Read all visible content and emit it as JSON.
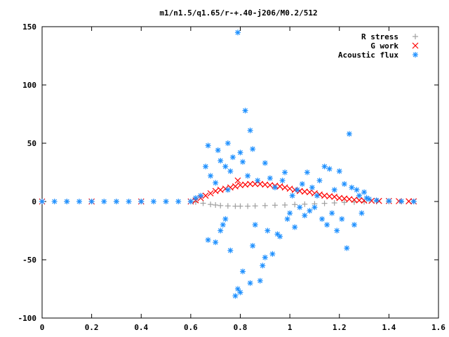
{
  "chart_data": {
    "type": "scatter",
    "title": "m1/n1.5/q1.65/r-+.40-j206/M0.2/512",
    "xlabel": "",
    "ylabel": "",
    "xlim": [
      0,
      1.6
    ],
    "ylim": [
      -100,
      150
    ],
    "xticks": [
      "0",
      "0.2",
      "0.4",
      "0.6",
      "0.8",
      "1",
      "1.2",
      "1.4",
      "1.6"
    ],
    "yticks": [
      "-100",
      "-50",
      "0",
      "50",
      "100",
      "150"
    ],
    "grid": false,
    "legend": "top-right",
    "series": [
      {
        "name": "R stress",
        "marker": "plus",
        "color": "#a0a0a0",
        "points": [
          [
            0.0,
            0
          ],
          [
            0.1,
            0
          ],
          [
            0.2,
            0
          ],
          [
            0.3,
            0
          ],
          [
            0.4,
            0
          ],
          [
            0.5,
            0
          ],
          [
            0.6,
            0
          ],
          [
            0.62,
            -0.5
          ],
          [
            0.65,
            -1.5
          ],
          [
            0.68,
            -2.5
          ],
          [
            0.7,
            -3
          ],
          [
            0.72,
            -3.5
          ],
          [
            0.75,
            -3.8
          ],
          [
            0.78,
            -4
          ],
          [
            0.8,
            -4
          ],
          [
            0.83,
            -4
          ],
          [
            0.86,
            -3.8
          ],
          [
            0.9,
            -3.5
          ],
          [
            0.94,
            -3.2
          ],
          [
            0.98,
            -3
          ],
          [
            1.02,
            -2.6
          ],
          [
            1.06,
            -2.3
          ],
          [
            1.1,
            -2
          ],
          [
            1.14,
            -1.6
          ],
          [
            1.18,
            -1.2
          ],
          [
            1.22,
            -0.8
          ],
          [
            1.26,
            -0.5
          ],
          [
            1.3,
            -0.3
          ],
          [
            1.35,
            -0.1
          ],
          [
            1.4,
            0
          ],
          [
            1.45,
            0
          ],
          [
            1.5,
            0
          ]
        ]
      },
      {
        "name": "G work",
        "marker": "cross",
        "color": "#ff0000",
        "points": [
          [
            0.0,
            0
          ],
          [
            0.2,
            0
          ],
          [
            0.4,
            0
          ],
          [
            0.6,
            0
          ],
          [
            0.62,
            1
          ],
          [
            0.64,
            3
          ],
          [
            0.66,
            5
          ],
          [
            0.68,
            7
          ],
          [
            0.7,
            9
          ],
          [
            0.72,
            10
          ],
          [
            0.74,
            11
          ],
          [
            0.76,
            12
          ],
          [
            0.78,
            13
          ],
          [
            0.79,
            18
          ],
          [
            0.8,
            14
          ],
          [
            0.82,
            14.5
          ],
          [
            0.84,
            15
          ],
          [
            0.86,
            15
          ],
          [
            0.88,
            15
          ],
          [
            0.9,
            14.5
          ],
          [
            0.92,
            14
          ],
          [
            0.94,
            13.5
          ],
          [
            0.96,
            13
          ],
          [
            0.98,
            12
          ],
          [
            1.0,
            11
          ],
          [
            1.02,
            10
          ],
          [
            1.04,
            9
          ],
          [
            1.06,
            8.5
          ],
          [
            1.08,
            8
          ],
          [
            1.1,
            7
          ],
          [
            1.12,
            6
          ],
          [
            1.14,
            5
          ],
          [
            1.16,
            4.5
          ],
          [
            1.18,
            4
          ],
          [
            1.2,
            3
          ],
          [
            1.22,
            2.5
          ],
          [
            1.24,
            2
          ],
          [
            1.26,
            1.5
          ],
          [
            1.28,
            1
          ],
          [
            1.3,
            0.8
          ],
          [
            1.33,
            0.6
          ],
          [
            1.36,
            0.5
          ],
          [
            1.4,
            0.4
          ],
          [
            1.44,
            0.3
          ],
          [
            1.48,
            0.2
          ],
          [
            1.5,
            0.1
          ]
        ]
      },
      {
        "name": "Acoustic flux",
        "marker": "star",
        "color": "#1e90ff",
        "points": [
          [
            0.0,
            0
          ],
          [
            0.05,
            0
          ],
          [
            0.1,
            0
          ],
          [
            0.15,
            0
          ],
          [
            0.2,
            0
          ],
          [
            0.25,
            0
          ],
          [
            0.3,
            0
          ],
          [
            0.35,
            0
          ],
          [
            0.4,
            0
          ],
          [
            0.45,
            0
          ],
          [
            0.5,
            0
          ],
          [
            0.55,
            0
          ],
          [
            0.6,
            0
          ],
          [
            0.62,
            3
          ],
          [
            0.64,
            5
          ],
          [
            0.66,
            30
          ],
          [
            0.67,
            -33
          ],
          [
            0.67,
            48
          ],
          [
            0.68,
            22
          ],
          [
            0.7,
            -35
          ],
          [
            0.7,
            16
          ],
          [
            0.71,
            44
          ],
          [
            0.72,
            35
          ],
          [
            0.72,
            -25
          ],
          [
            0.73,
            -20
          ],
          [
            0.74,
            30
          ],
          [
            0.74,
            -15
          ],
          [
            0.75,
            50
          ],
          [
            0.75,
            10
          ],
          [
            0.76,
            -42
          ],
          [
            0.76,
            26
          ],
          [
            0.77,
            38
          ],
          [
            0.78,
            -81
          ],
          [
            0.79,
            145
          ],
          [
            0.79,
            -75
          ],
          [
            0.8,
            42
          ],
          [
            0.8,
            -78
          ],
          [
            0.81,
            -60
          ],
          [
            0.81,
            34
          ],
          [
            0.82,
            78
          ],
          [
            0.83,
            22
          ],
          [
            0.84,
            61
          ],
          [
            0.84,
            -70
          ],
          [
            0.85,
            45
          ],
          [
            0.85,
            -38
          ],
          [
            0.86,
            -20
          ],
          [
            0.87,
            18
          ],
          [
            0.88,
            -68
          ],
          [
            0.89,
            -55
          ],
          [
            0.9,
            -48
          ],
          [
            0.9,
            33
          ],
          [
            0.91,
            -25
          ],
          [
            0.92,
            20
          ],
          [
            0.93,
            -45
          ],
          [
            0.94,
            12
          ],
          [
            0.95,
            -28
          ],
          [
            0.96,
            -30
          ],
          [
            0.97,
            18
          ],
          [
            0.98,
            25
          ],
          [
            0.99,
            -15
          ],
          [
            1.0,
            -10
          ],
          [
            1.01,
            5
          ],
          [
            1.02,
            -22
          ],
          [
            1.03,
            10
          ],
          [
            1.04,
            -5
          ],
          [
            1.05,
            15
          ],
          [
            1.06,
            -12
          ],
          [
            1.07,
            25
          ],
          [
            1.08,
            -8
          ],
          [
            1.09,
            12
          ],
          [
            1.1,
            -5
          ],
          [
            1.11,
            5
          ],
          [
            1.12,
            18
          ],
          [
            1.13,
            -15
          ],
          [
            1.14,
            30
          ],
          [
            1.15,
            -20
          ],
          [
            1.16,
            28
          ],
          [
            1.17,
            -10
          ],
          [
            1.18,
            10
          ],
          [
            1.19,
            -25
          ],
          [
            1.2,
            26
          ],
          [
            1.21,
            -15
          ],
          [
            1.22,
            15
          ],
          [
            1.23,
            -40
          ],
          [
            1.24,
            58
          ],
          [
            1.25,
            12
          ],
          [
            1.26,
            -20
          ],
          [
            1.27,
            10
          ],
          [
            1.28,
            5
          ],
          [
            1.29,
            -10
          ],
          [
            1.3,
            8
          ],
          [
            1.31,
            3
          ],
          [
            1.32,
            2
          ],
          [
            1.35,
            1
          ],
          [
            1.4,
            0.5
          ],
          [
            1.45,
            0.2
          ],
          [
            1.5,
            0
          ]
        ]
      }
    ]
  }
}
